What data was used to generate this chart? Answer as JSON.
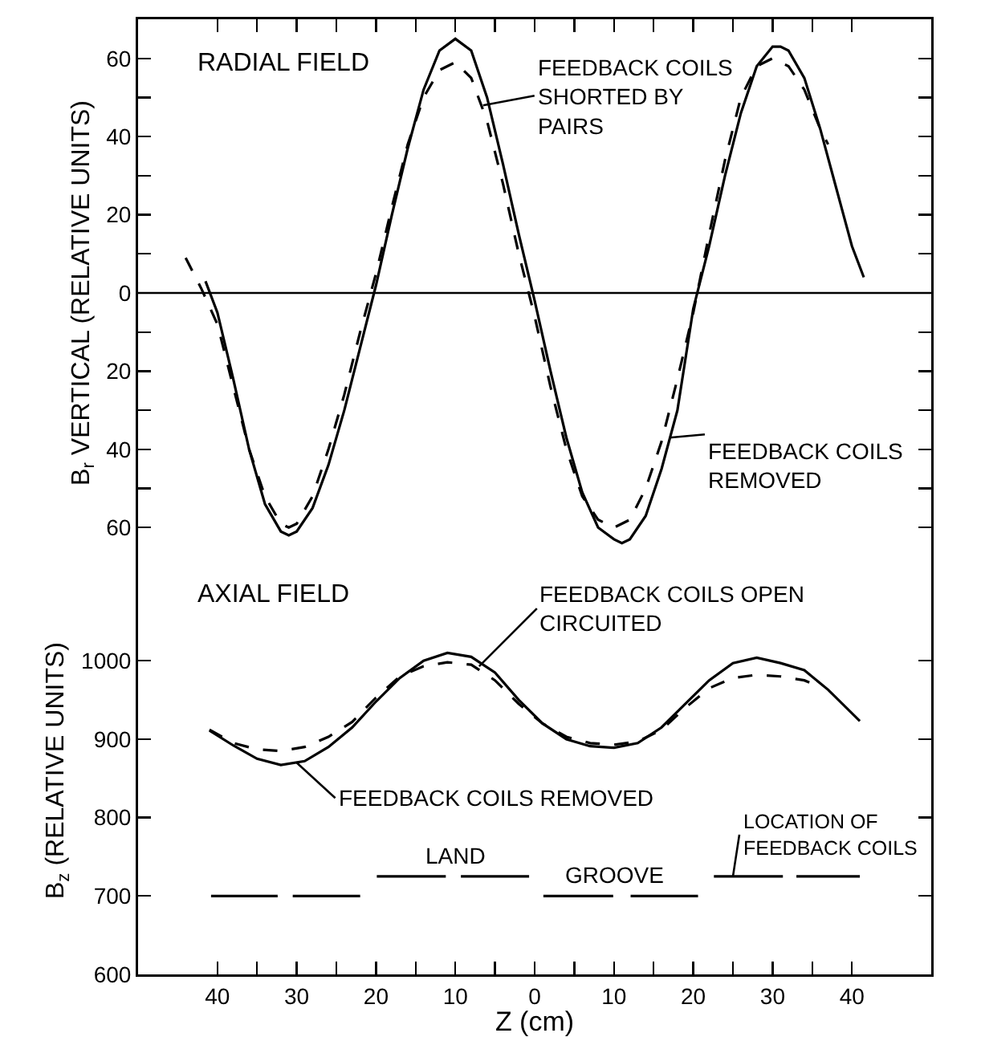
{
  "chart_data": [
    {
      "type": "line",
      "ylabel": "B$_{r}$ VERTICAL (RELATIVE UNITS)",
      "xlim": [
        -50,
        50
      ],
      "xticks": [
        {
          "value": -40,
          "label": null
        },
        {
          "value": -35,
          "label": null
        },
        {
          "value": -30,
          "label": null
        },
        {
          "value": -25,
          "label": null
        },
        {
          "value": -20,
          "label": null
        },
        {
          "value": -15,
          "label": null
        },
        {
          "value": -10,
          "label": null
        },
        {
          "value": -5,
          "label": null
        },
        {
          "value": 0,
          "label": null
        },
        {
          "value": 5,
          "label": null
        },
        {
          "value": 10,
          "label": null
        },
        {
          "value": 15,
          "label": null
        },
        {
          "value": 20,
          "label": null
        },
        {
          "value": 25,
          "label": null
        },
        {
          "value": 30,
          "label": null
        },
        {
          "value": 35,
          "label": null
        },
        {
          "value": 40,
          "label": null
        }
      ],
      "ylim": [
        -70,
        70
      ],
      "yticks": [
        {
          "value": -60,
          "label": "60"
        },
        {
          "value": -50,
          "label": null
        },
        {
          "value": -40,
          "label": "40"
        },
        {
          "value": -30,
          "label": null
        },
        {
          "value": -20,
          "label": "20"
        },
        {
          "value": -10,
          "label": null
        },
        0,
        {
          "value": 10,
          "label": null
        },
        20,
        {
          "value": 30,
          "label": null
        },
        40,
        {
          "value": 50,
          "label": null
        },
        60
      ],
      "tick_labels": "y",
      "ref_lines": [
        {
          "axis": "y",
          "value": 0,
          "color": "#000000",
          "line_style": "solid"
        }
      ],
      "series": [
        {
          "color": "#000000",
          "line_style": "solid",
          "x": [
            -41.5,
            -40,
            -38,
            -36,
            -34,
            -32,
            -31,
            -30,
            -28,
            -26,
            -24,
            -22,
            -20,
            -18,
            -16,
            -14,
            -12,
            -10,
            -8,
            -6,
            -4,
            -2,
            0,
            2,
            4,
            6,
            8,
            10,
            11,
            12,
            14,
            16,
            18,
            20,
            22,
            24,
            26,
            28,
            30,
            31,
            32,
            34,
            36,
            38,
            40,
            41.5
          ],
          "values": [
            3,
            -5,
            -22,
            -40,
            -54,
            -61,
            -62,
            -61,
            -55,
            -44,
            -30,
            -14,
            2,
            20,
            37,
            52,
            62,
            65,
            62,
            50,
            33,
            15,
            -2,
            -20,
            -37,
            -51,
            -60,
            -63,
            -64,
            -63,
            -57,
            -45,
            -30,
            -4,
            12,
            30,
            46,
            58,
            63,
            63,
            62,
            55,
            42,
            27,
            12,
            4
          ]
        },
        {
          "color": "#000000",
          "line_style": "dashed",
          "x": [
            -44,
            -42,
            -40,
            -38,
            -36,
            -34,
            -32,
            -31,
            -30,
            -28,
            -26,
            -24,
            -22,
            -20,
            -18,
            -16,
            -14,
            -12,
            -10,
            -8,
            -6,
            -4,
            -2,
            0,
            2,
            4,
            6,
            8,
            10,
            12,
            14,
            16,
            18,
            20,
            22,
            24,
            26,
            28,
            30,
            32,
            34,
            36,
            37
          ],
          "values": [
            9,
            1,
            -8,
            -24,
            -40,
            -52,
            -59,
            -60,
            -59,
            -52,
            -40,
            -26,
            -10,
            5,
            22,
            38,
            50,
            57,
            59,
            55,
            44,
            28,
            10,
            -6,
            -24,
            -40,
            -52,
            -58,
            -60,
            -58,
            -50,
            -38,
            -22,
            -5,
            15,
            34,
            50,
            58,
            60,
            58,
            52,
            42,
            38
          ]
        }
      ],
      "annotations": [
        "RADIAL FIELD",
        {
          "text": "FEEDBACK COILS\nSHORTED BY\nPAIRS",
          "x": -6.5,
          "y": 48
        },
        {
          "text": "FEEDBACK COILS\nREMOVED",
          "x": 17,
          "y": -37
        }
      ]
    },
    {
      "type": "line",
      "xlabel": "Z (cm)",
      "ylabel": "B$_{z}$ (RELATIVE UNITS)",
      "xlim": [
        -50,
        50
      ],
      "xticks": [
        {
          "value": -40,
          "label": "40"
        },
        {
          "value": -35,
          "label": null
        },
        {
          "value": -30,
          "label": "30"
        },
        {
          "value": -25,
          "label": null
        },
        {
          "value": -20,
          "label": "20"
        },
        {
          "value": -15,
          "label": null
        },
        {
          "value": -10,
          "label": "10"
        },
        {
          "value": -5,
          "label": null
        },
        0,
        {
          "value": 5,
          "label": null
        },
        10,
        {
          "value": 15,
          "label": null
        },
        20,
        {
          "value": 25,
          "label": null
        },
        30,
        {
          "value": 35,
          "label": null
        },
        40
      ],
      "ylim": [
        600,
        1120
      ],
      "yticks": [
        600,
        700,
        800,
        900,
        1000
      ],
      "series": [
        {
          "color": "#000000",
          "line_style": "solid",
          "x": [
            -41,
            -38,
            -35,
            -32,
            -29,
            -26,
            -23,
            -20,
            -17,
            -14,
            -11,
            -8,
            -5,
            -2,
            1,
            4,
            7,
            10,
            13,
            16,
            19,
            22,
            25,
            28,
            31,
            34,
            37,
            41
          ],
          "values": [
            911,
            892,
            875,
            867,
            872,
            890,
            915,
            948,
            978,
            1000,
            1010,
            1005,
            985,
            950,
            920,
            900,
            891,
            889,
            895,
            915,
            945,
            975,
            997,
            1004,
            997,
            988,
            963,
            923
          ]
        },
        {
          "color": "#000000",
          "line_style": "dashed",
          "x": [
            -41,
            -38,
            -35,
            -32,
            -29,
            -26,
            -23,
            -20,
            -17,
            -14,
            -11,
            -8,
            -5,
            -2,
            1,
            4,
            7,
            10,
            13,
            16,
            19,
            22,
            25,
            28,
            31,
            34,
            36
          ],
          "values": [
            912,
            895,
            887,
            885,
            890,
            903,
            922,
            953,
            980,
            993,
            998,
            995,
            975,
            945,
            920,
            903,
            895,
            893,
            897,
            912,
            940,
            965,
            978,
            982,
            980,
            975,
            967
          ]
        },
        {
          "color": "#000000",
          "line_style": "solid",
          "x": [
            -40.8,
            -32.4,
            -31.5,
            -30.5,
            -22,
            -11,
            1.1,
            9.9,
            11,
            12.1,
            20.6
          ],
          "values": [
            700,
            700,
            null,
            700,
            700,
            null,
            700,
            700,
            null,
            700,
            700
          ]
        },
        {
          "color": "#000000",
          "line_style": "solid",
          "x": [
            -19.9,
            -11.2,
            -10,
            -9.3,
            -0.7,
            11,
            22.6,
            31.3,
            32,
            33,
            41
          ],
          "values": [
            725,
            725,
            null,
            725,
            725,
            null,
            725,
            725,
            null,
            725,
            725
          ]
        }
      ],
      "annotations": [
        "AXIAL FIELD",
        {
          "text": "FEEDBACK COILS OPEN\nCIRCUITED",
          "x": -7,
          "y": 993
        },
        {
          "text": "FEEDBACK COILS REMOVED",
          "x": -30,
          "y": 870
        },
        {
          "text": "LAND",
          "x": -10,
          "y": 725
        },
        {
          "text": "GROOVE",
          "x": 10,
          "y": 700
        },
        {
          "text": "LOCATION OF\nFEEDBACK COILS",
          "x": 25,
          "y": 725
        }
      ]
    }
  ]
}
